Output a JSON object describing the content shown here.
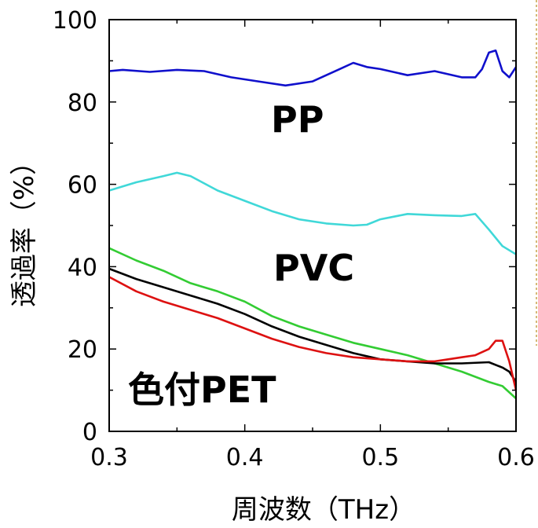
{
  "chart_data": {
    "type": "line",
    "xlabel": "周波数（THz）",
    "ylabel": "透過率（%）",
    "xlim": [
      0.3,
      0.6
    ],
    "ylim": [
      0,
      100
    ],
    "xticks": [
      "0.3",
      "0.4",
      "0.5",
      "0.6"
    ],
    "yticks": [
      "0",
      "20",
      "40",
      "60",
      "80",
      "100"
    ],
    "grid": false,
    "annotations": [
      "PP",
      "PVC",
      "色付PET"
    ],
    "series": [
      {
        "color": "#1010cc",
        "x": [
          0.3,
          0.31,
          0.33,
          0.35,
          0.37,
          0.39,
          0.41,
          0.43,
          0.45,
          0.47,
          0.48,
          0.49,
          0.5,
          0.52,
          0.54,
          0.56,
          0.57,
          0.575,
          0.58,
          0.585,
          0.59,
          0.595,
          0.6
        ],
        "y": [
          87.5,
          87.8,
          87.3,
          87.8,
          87.5,
          86.0,
          85.0,
          84.0,
          85.0,
          88.0,
          89.5,
          88.5,
          88.0,
          86.5,
          87.5,
          86.0,
          86.0,
          88.0,
          92.0,
          92.5,
          87.5,
          86.0,
          88.5
        ]
      },
      {
        "color": "#40d8d8",
        "x": [
          0.3,
          0.32,
          0.34,
          0.35,
          0.36,
          0.38,
          0.4,
          0.42,
          0.44,
          0.46,
          0.48,
          0.49,
          0.5,
          0.52,
          0.54,
          0.56,
          0.57,
          0.58,
          0.59,
          0.6
        ],
        "y": [
          58.5,
          60.5,
          62.0,
          62.8,
          62.0,
          58.5,
          56.0,
          53.5,
          51.5,
          50.5,
          50.0,
          50.2,
          51.5,
          52.8,
          52.5,
          52.3,
          52.8,
          49.0,
          45.0,
          43.0
        ]
      },
      {
        "color": "#33cc33",
        "x": [
          0.3,
          0.32,
          0.34,
          0.36,
          0.38,
          0.4,
          0.42,
          0.44,
          0.46,
          0.48,
          0.5,
          0.52,
          0.54,
          0.56,
          0.58,
          0.59,
          0.6
        ],
        "y": [
          44.5,
          41.5,
          39.0,
          36.0,
          34.0,
          31.5,
          28.0,
          25.5,
          23.5,
          21.5,
          20.0,
          18.5,
          16.5,
          14.5,
          12.0,
          11.0,
          8.0
        ]
      },
      {
        "color": "#000000",
        "x": [
          0.3,
          0.32,
          0.34,
          0.36,
          0.38,
          0.4,
          0.42,
          0.44,
          0.46,
          0.48,
          0.5,
          0.52,
          0.54,
          0.56,
          0.58,
          0.59,
          0.595,
          0.6
        ],
        "y": [
          39.5,
          37.0,
          35.0,
          33.0,
          31.0,
          28.5,
          25.5,
          23.0,
          21.0,
          19.0,
          17.5,
          17.0,
          16.5,
          16.5,
          16.8,
          15.5,
          14.5,
          12.0
        ]
      },
      {
        "color": "#dd1111",
        "x": [
          0.3,
          0.32,
          0.34,
          0.36,
          0.38,
          0.4,
          0.42,
          0.44,
          0.46,
          0.48,
          0.5,
          0.52,
          0.54,
          0.55,
          0.56,
          0.57,
          0.58,
          0.585,
          0.59,
          0.595,
          0.6
        ],
        "y": [
          37.5,
          34.0,
          31.5,
          29.5,
          27.5,
          25.0,
          22.5,
          20.5,
          19.0,
          18.0,
          17.5,
          17.0,
          17.0,
          17.5,
          18.0,
          18.5,
          20.0,
          22.0,
          22.0,
          17.0,
          10.0
        ]
      }
    ]
  }
}
